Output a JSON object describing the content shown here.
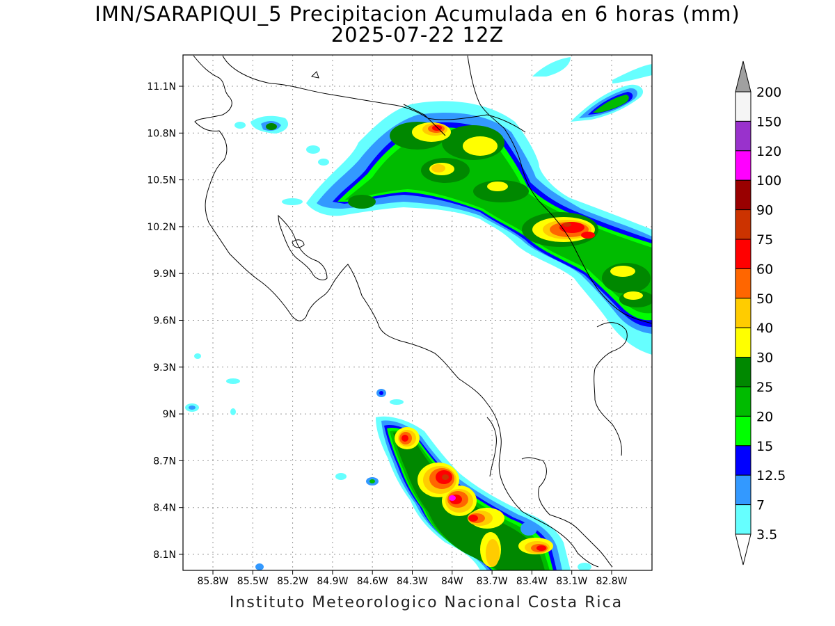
{
  "header": {
    "title": "IMN/SARAPIQUI_5 Precipitacion Acumulada en 6 horas (mm)",
    "subtitle": "2025-07-22 12Z"
  },
  "footer": {
    "credit": "Instituto Meteorologico Nacional Costa Rica"
  },
  "map": {
    "lat_ticks": [
      "11.1N",
      "10.8N",
      "10.5N",
      "10.2N",
      "9.9N",
      "9.6N",
      "9.3N",
      "9N",
      "8.7N",
      "8.4N",
      "8.1N"
    ],
    "lon_ticks": [
      "85.8W",
      "85.5W",
      "85.2W",
      "84.9W",
      "84.6W",
      "84.3W",
      "84W",
      "83.7W",
      "83.4W",
      "83.1W",
      "82.8W"
    ],
    "grid": "dotted"
  },
  "colorbar": {
    "labels": [
      "200",
      "150",
      "120",
      "100",
      "90",
      "75",
      "60",
      "50",
      "40",
      "30",
      "25",
      "20",
      "15",
      "12.5",
      "7",
      "3.5"
    ],
    "colors": [
      "#f5f5f5",
      "#9932cc",
      "#ff00ff",
      "#990000",
      "#cc3300",
      "#ff0000",
      "#ff6600",
      "#ffcc00",
      "#ffff00",
      "#008800",
      "#00bb00",
      "#00ff00",
      "#0000ff",
      "#3399ff",
      "#66ffff"
    ],
    "over_color": "#a0a0a0",
    "under_color": "#ffffff"
  }
}
